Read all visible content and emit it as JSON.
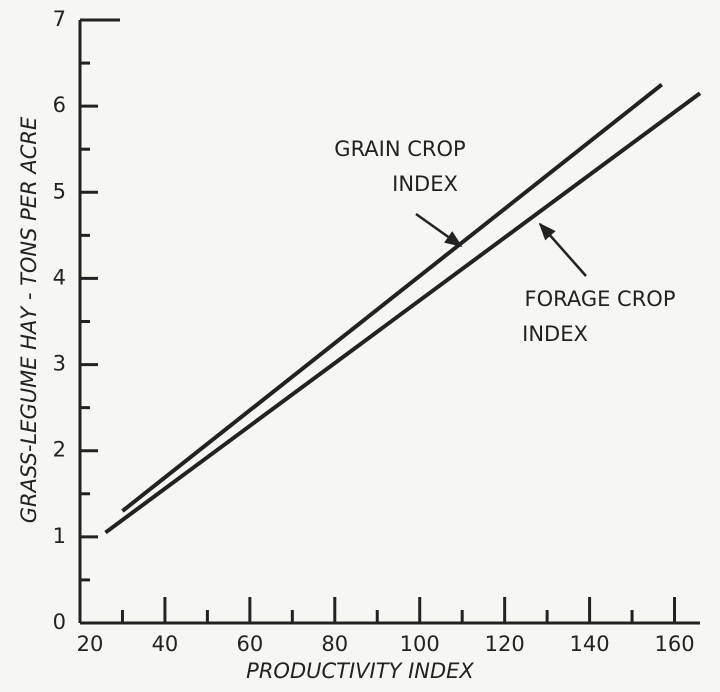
{
  "chart_data": {
    "type": "line",
    "xlabel": "PRODUCTIVITY INDEX",
    "ylabel": "GRASS-LEGUME HAY - TONS PER ACRE",
    "series": [
      {
        "name": "GRAIN CROP INDEX",
        "color": "#222222",
        "x": [
          30,
          157
        ],
        "values": [
          1.3,
          6.25
        ]
      },
      {
        "name": "FORAGE CROP INDEX",
        "color": "#222222",
        "x": [
          26,
          166
        ],
        "values": [
          1.05,
          6.15
        ]
      }
    ],
    "annotations": [
      {
        "lines": [
          "GRAIN CROP",
          "INDEX"
        ]
      },
      {
        "lines": [
          "FORAGE CROP",
          "INDEX"
        ]
      }
    ],
    "xlim": [
      20,
      166
    ],
    "ylim": [
      0,
      7
    ],
    "xticks": [
      20,
      40,
      60,
      80,
      100,
      120,
      140,
      160
    ],
    "xminorticks": [
      30,
      50,
      70,
      90,
      110,
      130,
      150
    ],
    "yticks": [
      0,
      1,
      2,
      3,
      4,
      5,
      6,
      7
    ],
    "yminorticks": [
      0.5,
      1.5,
      2.5,
      3.5,
      4.5,
      5.5,
      6.5
    ]
  }
}
